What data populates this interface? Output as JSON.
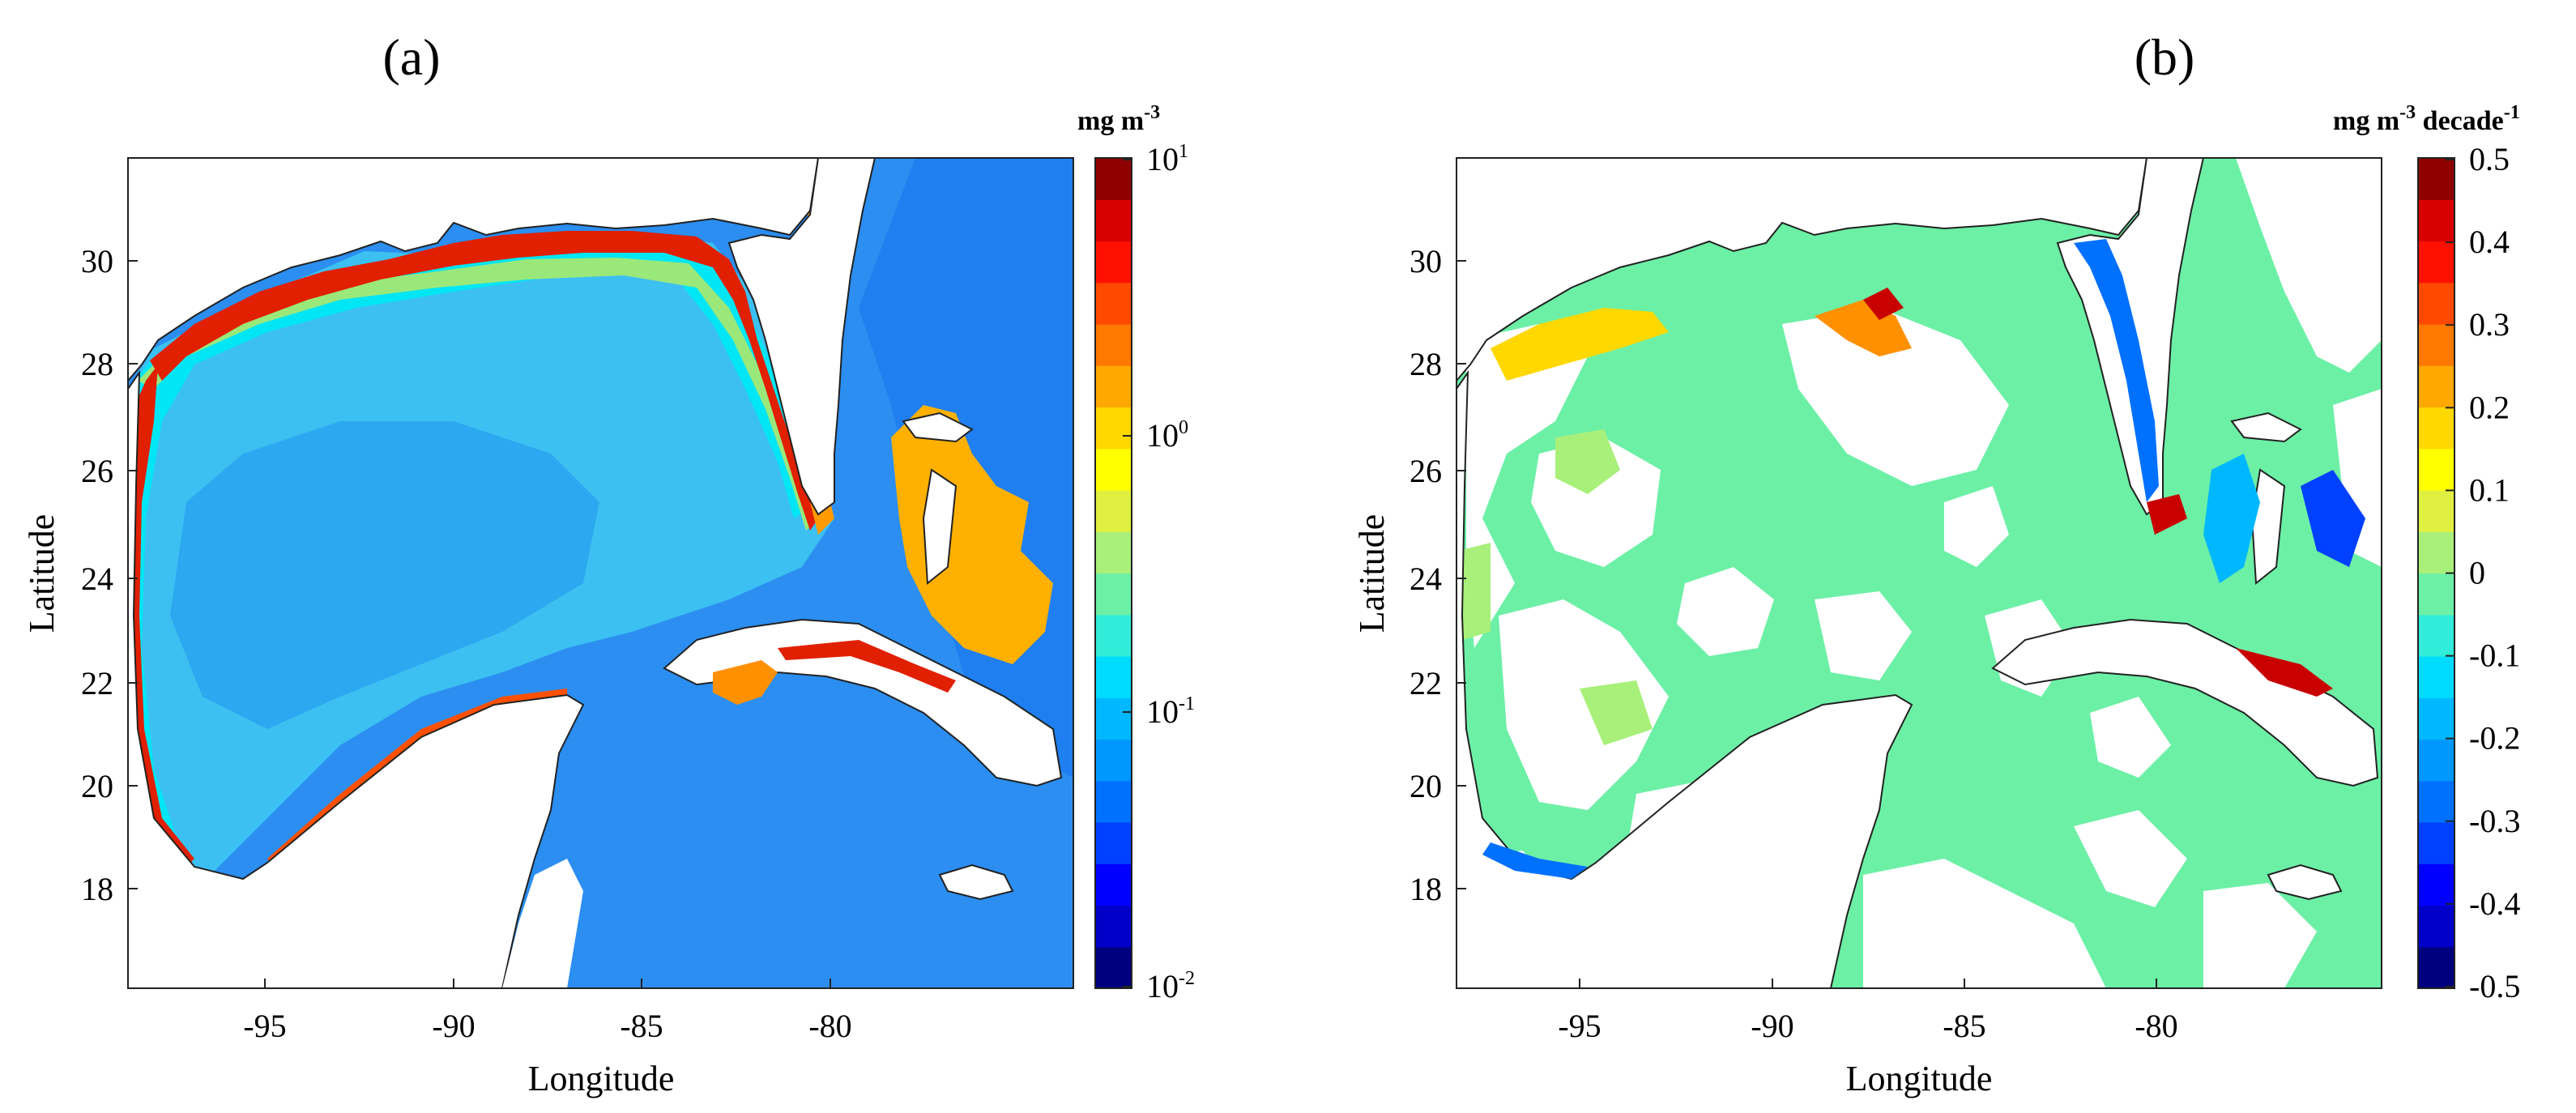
{
  "panels": [
    {
      "id": "a",
      "title": "(a)",
      "xlabel": "Longitude",
      "ylabel": "Latitude",
      "x_ticks": [
        "-95",
        "-90",
        "-85",
        "-80"
      ],
      "y_ticks": [
        "30",
        "28",
        "26",
        "24",
        "22",
        "20",
        "18"
      ],
      "colorbar": {
        "unit_main": "mg m",
        "unit_sup": "-3",
        "unit_tail": "",
        "unit_tail_sup": "",
        "scale": "log",
        "ticks": [
          {
            "base": "10",
            "exp": "1"
          },
          {
            "base": "10",
            "exp": "0"
          },
          {
            "base": "10",
            "exp": "-1"
          },
          {
            "base": "10",
            "exp": "-2"
          }
        ],
        "colors": [
          "#00007f",
          "#0000c8",
          "#0000ff",
          "#0040ff",
          "#0070ff",
          "#0098ff",
          "#00b8ff",
          "#00dcff",
          "#30ecd8",
          "#6cf0a6",
          "#a8f07a",
          "#e0f040",
          "#ffff00",
          "#ffd800",
          "#ffa800",
          "#ff7800",
          "#ff4800",
          "#ff1000",
          "#d80000",
          "#8f0000"
        ]
      }
    },
    {
      "id": "b",
      "title": "(b)",
      "xlabel": "Longitude",
      "ylabel": "Latitude",
      "x_ticks": [
        "-95",
        "-90",
        "-85",
        "-80"
      ],
      "y_ticks": [
        "30",
        "28",
        "26",
        "24",
        "22",
        "20",
        "18"
      ],
      "colorbar": {
        "unit_main": "mg m",
        "unit_sup": "-3",
        "unit_tail": " decade",
        "unit_tail_sup": "-1",
        "scale": "linear",
        "ticks": [
          "0.5",
          "0.4",
          "0.3",
          "0.2",
          "0.1",
          "0",
          "-0.1",
          "-0.2",
          "-0.3",
          "-0.4",
          "-0.5"
        ],
        "colors": [
          "#00007f",
          "#0000c8",
          "#0000ff",
          "#0040ff",
          "#0070ff",
          "#0098ff",
          "#00b8ff",
          "#00dcff",
          "#30ecd8",
          "#6cf0a6",
          "#a8f07a",
          "#e0f040",
          "#ffff00",
          "#ffd800",
          "#ffa800",
          "#ff7800",
          "#ff4800",
          "#ff1000",
          "#d80000",
          "#8f0000"
        ]
      }
    }
  ]
}
